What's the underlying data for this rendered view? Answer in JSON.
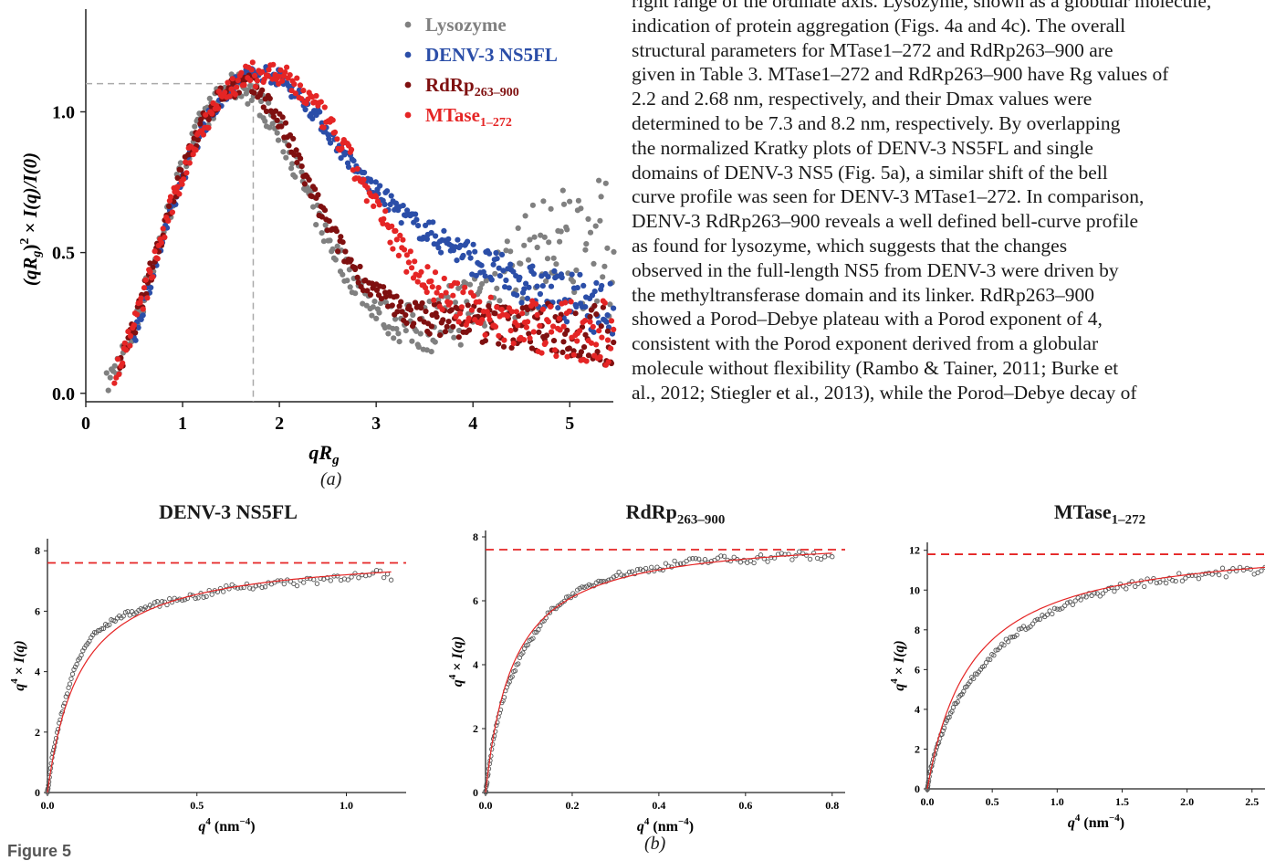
{
  "body_text": [
    "right range of the ordinate axis. Lysozyme, shown as a globular molecule,",
    "indication of protein aggregation (Figs. 4a and 4c). The overall",
    "structural parameters for MTase1–272 and RdRp263–900 are",
    "given in Table 3. MTase1–272 and RdRp263–900 have Rg values of",
    "2.2 and 2.68 nm, respectively, and their Dmax values were",
    "determined to be 7.3 and 8.2 nm, respectively. By overlapping",
    "the normalized Kratky plots of DENV-3 NS5FL and single",
    "domains of DENV-3 NS5 (Fig. 5a), a similar shift of the bell",
    "curve profile was seen for DENV-3 MTase1–272. In comparison,",
    "DENV-3 RdRp263–900 reveals a well defined bell-curve profile",
    "as found for lysozyme, which suggests that the changes",
    "observed in the full-length NS5 from DENV-3 were driven by",
    "the methyltransferase domain and its linker. RdRp263–900",
    "showed a Porod–Debye plateau with a Porod exponent of 4,",
    "consistent with the Porod exponent derived from a globular",
    "molecule without flexibility (Rambo & Tainer, 2011; Burke et",
    "al., 2012; Stiegler et al., 2013), while the Porod–Debye decay of"
  ],
  "figure_label": "Figure 5",
  "caption_a": "(a)",
  "caption_b": "(b)",
  "chart_data": [
    {
      "type": "scatter",
      "title": "",
      "xlabel": "qRg",
      "ylabel": "(qRg)² × I(q)/I(0)",
      "xlim": [
        0,
        5.45
      ],
      "ylim": [
        -0.03,
        1.3
      ],
      "xticks": [
        0,
        1,
        2,
        3,
        4,
        5
      ],
      "yticks": [
        0.0,
        0.5,
        1.0
      ],
      "guide_lines": {
        "x": 1.73,
        "y": 1.1
      },
      "legend_position": "top-right",
      "series": [
        {
          "name": "Lysozyme",
          "color": "#808080",
          "x": [
            0.22,
            0.5,
            0.8,
            1.0,
            1.2,
            1.45,
            1.6,
            1.75,
            1.9,
            2.1,
            2.3,
            2.5,
            2.7,
            2.9,
            3.1,
            3.3,
            3.5,
            3.7,
            3.9,
            4.1,
            4.3,
            4.5,
            4.7,
            4.9,
            5.1,
            5.3,
            5.45
          ],
          "y": [
            0.03,
            0.22,
            0.58,
            0.8,
            0.97,
            1.08,
            1.09,
            1.06,
            0.98,
            0.86,
            0.7,
            0.55,
            0.43,
            0.34,
            0.27,
            0.24,
            0.24,
            0.26,
            0.3,
            0.35,
            0.4,
            0.45,
            0.5,
            0.52,
            0.53,
            0.5,
            0.48
          ]
        },
        {
          "name": "DENV-3 NS5FL",
          "color": "#2b4ea8",
          "x": [
            0.5,
            0.8,
            1.0,
            1.2,
            1.45,
            1.65,
            1.85,
            2.0,
            2.2,
            2.4,
            2.6,
            2.8,
            3.0,
            3.2,
            3.4,
            3.6,
            3.8,
            4.0,
            4.2,
            4.4,
            4.6,
            4.8,
            5.0,
            5.2,
            5.45
          ],
          "y": [
            0.2,
            0.55,
            0.77,
            0.94,
            1.07,
            1.13,
            1.14,
            1.12,
            1.06,
            0.98,
            0.88,
            0.79,
            0.72,
            0.66,
            0.6,
            0.56,
            0.52,
            0.48,
            0.44,
            0.41,
            0.38,
            0.36,
            0.34,
            0.32,
            0.29
          ]
        },
        {
          "name": "RdRp263–900",
          "color": "#7f1010",
          "x": [
            0.35,
            0.6,
            0.9,
            1.1,
            1.3,
            1.5,
            1.65,
            1.8,
            1.95,
            2.1,
            2.3,
            2.5,
            2.7,
            2.9,
            3.1,
            3.3,
            3.5,
            3.7,
            3.9,
            4.1,
            4.3,
            4.5,
            4.7,
            4.9,
            5.1,
            5.3,
            5.45
          ],
          "y": [
            0.08,
            0.35,
            0.7,
            0.88,
            1.02,
            1.09,
            1.1,
            1.07,
            1.0,
            0.9,
            0.74,
            0.6,
            0.48,
            0.39,
            0.33,
            0.29,
            0.27,
            0.26,
            0.26,
            0.25,
            0.24,
            0.24,
            0.23,
            0.23,
            0.22,
            0.21,
            0.2
          ]
        },
        {
          "name": "MTase1–272",
          "color": "#e52525",
          "x": [
            0.3,
            0.6,
            0.9,
            1.1,
            1.3,
            1.5,
            1.7,
            1.9,
            2.1,
            2.3,
            2.5,
            2.7,
            2.9,
            3.1,
            3.3,
            3.5,
            3.7,
            3.9,
            4.1,
            4.3,
            4.5,
            4.7,
            4.9,
            5.1,
            5.3,
            5.45
          ],
          "y": [
            0.06,
            0.34,
            0.68,
            0.87,
            1.01,
            1.09,
            1.13,
            1.14,
            1.11,
            1.05,
            0.96,
            0.85,
            0.72,
            0.6,
            0.49,
            0.41,
            0.35,
            0.31,
            0.28,
            0.26,
            0.25,
            0.24,
            0.23,
            0.22,
            0.22,
            0.21
          ]
        }
      ]
    },
    {
      "type": "scatter",
      "title": "DENV-3 NS5FL",
      "xlabel": "q⁴ (nm⁻⁴)",
      "ylabel": "q⁴ × I(q)",
      "xlim": [
        0,
        1.2
      ],
      "ylim": [
        0,
        8.4
      ],
      "xticks": [
        0.0,
        0.5,
        1.0
      ],
      "yticks": [
        0,
        2,
        4,
        6,
        8
      ],
      "plateau": 7.6,
      "fit": {
        "a": 8.0,
        "b": 0.11
      },
      "x": [
        0.0,
        0.01,
        0.02,
        0.04,
        0.06,
        0.08,
        0.1,
        0.12,
        0.15,
        0.18,
        0.22,
        0.26,
        0.3,
        0.35,
        0.4,
        0.45,
        0.5,
        0.55,
        0.6,
        0.65,
        0.7,
        0.75,
        0.8,
        0.85,
        0.9,
        0.95,
        1.0,
        1.05,
        1.1,
        1.15
      ],
      "y": [
        0.0,
        0.8,
        1.4,
        2.3,
        3.1,
        3.8,
        4.3,
        4.7,
        5.2,
        5.4,
        5.7,
        5.9,
        6.0,
        6.2,
        6.3,
        6.45,
        6.5,
        6.6,
        6.75,
        6.85,
        6.8,
        7.0,
        6.9,
        7.0,
        7.05,
        7.1,
        7.2,
        7.1,
        7.2,
        7.1
      ]
    },
    {
      "type": "scatter",
      "title": "RdRp263–900",
      "xlabel": "q⁴ (nm⁻⁴)",
      "ylabel": "q⁴ × I(q)",
      "xlim": [
        0,
        0.83
      ],
      "ylim": [
        0,
        8.2
      ],
      "xticks": [
        0.0,
        0.2,
        0.4,
        0.6,
        0.8
      ],
      "yticks": [
        0,
        2,
        4,
        6,
        8
      ],
      "plateau": 7.6,
      "fit": {
        "a": 8.1,
        "b": 0.065
      },
      "x": [
        0.0,
        0.005,
        0.01,
        0.02,
        0.03,
        0.04,
        0.05,
        0.06,
        0.08,
        0.1,
        0.12,
        0.14,
        0.16,
        0.18,
        0.2,
        0.23,
        0.26,
        0.3,
        0.34,
        0.38,
        0.42,
        0.46,
        0.5,
        0.55,
        0.6,
        0.65,
        0.7,
        0.75,
        0.8
      ],
      "y": [
        0.0,
        0.5,
        1.0,
        1.8,
        2.4,
        2.9,
        3.3,
        3.6,
        4.2,
        4.7,
        5.1,
        5.5,
        5.8,
        6.0,
        6.2,
        6.4,
        6.6,
        6.8,
        6.9,
        7.0,
        7.1,
        7.2,
        7.25,
        7.3,
        7.3,
        7.35,
        7.4,
        7.4,
        7.35
      ]
    },
    {
      "type": "scatter",
      "title": "MTase1–272",
      "xlabel": "q⁴ (nm⁻⁴)",
      "ylabel": "q⁴ × I(q)",
      "xlim": [
        0,
        2.6
      ],
      "ylim": [
        0,
        12.4
      ],
      "xticks": [
        0.0,
        0.5,
        1.0,
        1.5,
        2.0,
        2.5
      ],
      "yticks": [
        0,
        2,
        4,
        6,
        8,
        10,
        12
      ],
      "plateau": 11.8,
      "fit": {
        "a": 12.6,
        "b": 0.34
      },
      "x": [
        0.0,
        0.02,
        0.05,
        0.1,
        0.15,
        0.2,
        0.3,
        0.4,
        0.5,
        0.6,
        0.7,
        0.8,
        0.9,
        1.0,
        1.1,
        1.2,
        1.3,
        1.4,
        1.5,
        1.6,
        1.7,
        1.8,
        1.9,
        2.0,
        2.1,
        2.2,
        2.3,
        2.4,
        2.5,
        2.6
      ],
      "y": [
        0.0,
        0.8,
        1.6,
        2.6,
        3.4,
        4.1,
        5.2,
        6.0,
        6.7,
        7.4,
        7.9,
        8.3,
        8.7,
        9.0,
        9.3,
        9.6,
        9.8,
        10.0,
        10.2,
        10.3,
        10.4,
        10.5,
        10.6,
        10.7,
        10.8,
        10.85,
        10.9,
        10.95,
        11.0,
        11.05
      ]
    }
  ]
}
